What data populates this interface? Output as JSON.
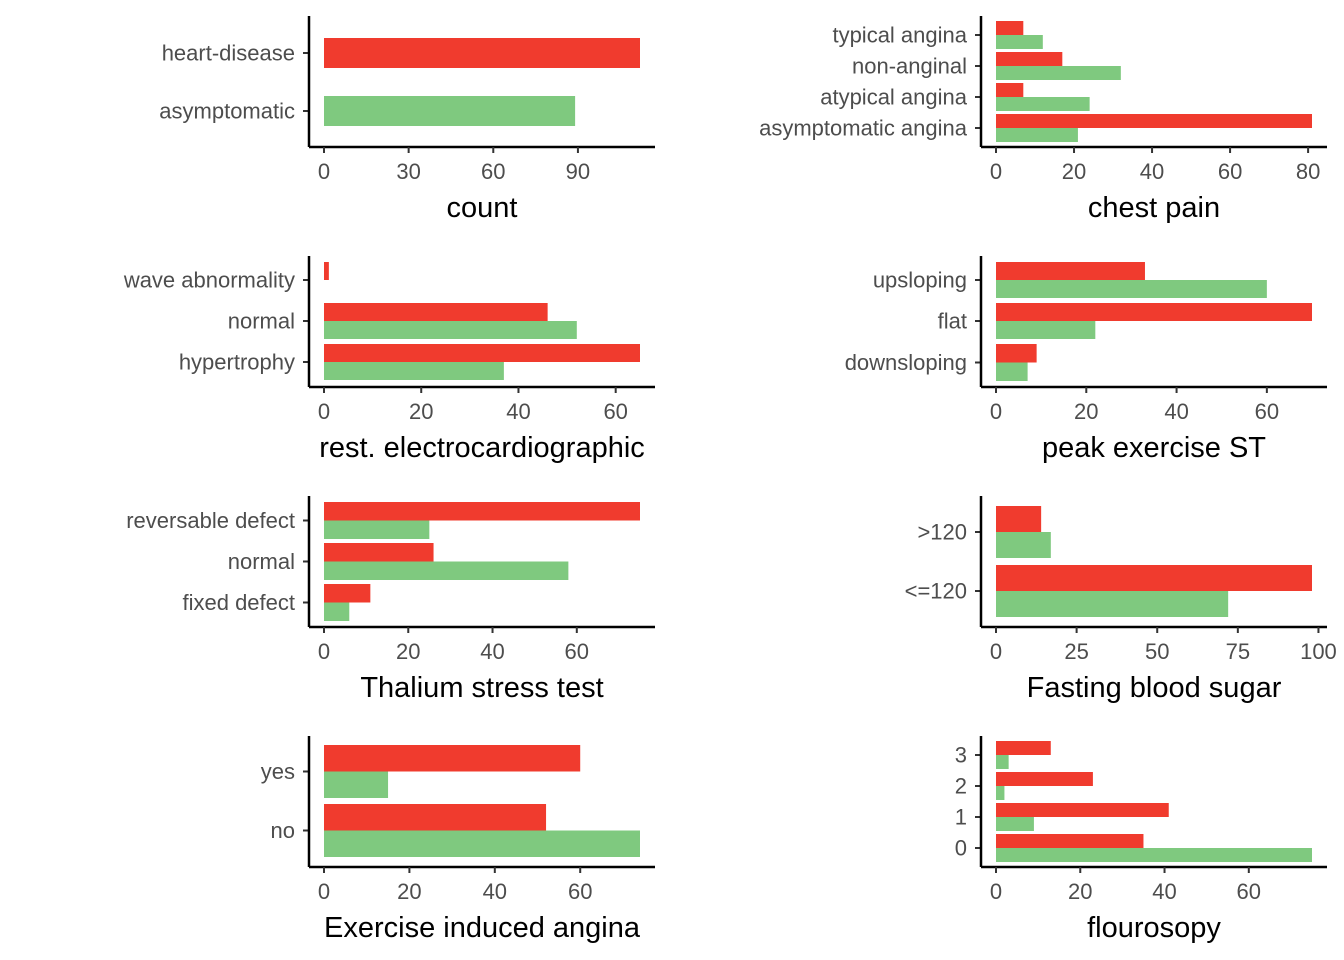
{
  "colors": {
    "heart_disease": "#f03b2e",
    "asymptomatic": "#7fc97f"
  },
  "chart_data": [
    {
      "id": "count",
      "type": "bar",
      "orientation": "horizontal",
      "xlabel": "count",
      "xlim": [
        0,
        112
      ],
      "xticks": [
        0,
        30,
        60,
        90
      ],
      "categories": [
        "heart-disease",
        "asymptomatic"
      ],
      "series": [
        {
          "values": [
            112,
            89
          ]
        }
      ],
      "bar_colors": [
        "#f03b2e",
        "#7fc97f"
      ]
    },
    {
      "id": "chest-pain",
      "type": "bar",
      "orientation": "horizontal",
      "xlabel": "chest pain",
      "xlim": [
        0,
        81
      ],
      "xticks": [
        0,
        20,
        40,
        60,
        80
      ],
      "categories": [
        "typical angina",
        "non-anginal",
        "atypical angina",
        "asymptomatic angina"
      ],
      "series": [
        {
          "color": "#f03b2e",
          "values": [
            7,
            17,
            7,
            81
          ]
        },
        {
          "color": "#7fc97f",
          "values": [
            12,
            32,
            24,
            21
          ]
        }
      ]
    },
    {
      "id": "rest-ecg",
      "type": "bar",
      "orientation": "horizontal",
      "xlabel": "rest. electrocardiographic",
      "xlim": [
        0,
        65
      ],
      "xticks": [
        0,
        20,
        40,
        60
      ],
      "categories": [
        "wave abnormality",
        "normal",
        "hypertrophy"
      ],
      "series": [
        {
          "color": "#f03b2e",
          "values": [
            1,
            46,
            65
          ]
        },
        {
          "color": "#7fc97f",
          "values": [
            0,
            52,
            37
          ]
        }
      ]
    },
    {
      "id": "peak-exercise-st",
      "type": "bar",
      "orientation": "horizontal",
      "xlabel": "peak exercise ST",
      "xlim": [
        0,
        70
      ],
      "xticks": [
        0,
        20,
        40,
        60
      ],
      "categories": [
        "upsloping",
        "flat",
        "downsloping"
      ],
      "series": [
        {
          "color": "#f03b2e",
          "values": [
            33,
            70,
            9
          ]
        },
        {
          "color": "#7fc97f",
          "values": [
            60,
            22,
            7
          ]
        }
      ]
    },
    {
      "id": "thalium",
      "type": "bar",
      "orientation": "horizontal",
      "xlabel": "Thalium stress test",
      "xlim": [
        0,
        75
      ],
      "xticks": [
        0,
        20,
        40,
        60
      ],
      "categories": [
        "reversable defect",
        "normal",
        "fixed defect"
      ],
      "series": [
        {
          "color": "#f03b2e",
          "values": [
            75,
            26,
            11
          ]
        },
        {
          "color": "#7fc97f",
          "values": [
            25,
            58,
            6
          ]
        }
      ]
    },
    {
      "id": "fasting-blood-sugar",
      "type": "bar",
      "orientation": "horizontal",
      "xlabel": "Fasting blood sugar",
      "xlim": [
        0,
        98
      ],
      "xticks": [
        0,
        25,
        50,
        75,
        100
      ],
      "categories": [
        ">120",
        "<=120"
      ],
      "series": [
        {
          "color": "#f03b2e",
          "values": [
            14,
            98
          ]
        },
        {
          "color": "#7fc97f",
          "values": [
            17,
            72
          ]
        }
      ]
    },
    {
      "id": "exercise-angina",
      "type": "bar",
      "orientation": "horizontal",
      "xlabel": "Exercise induced angina",
      "xlim": [
        0,
        74
      ],
      "xticks": [
        0,
        20,
        40,
        60
      ],
      "categories": [
        "yes",
        "no"
      ],
      "series": [
        {
          "color": "#f03b2e",
          "values": [
            60,
            52
          ]
        },
        {
          "color": "#7fc97f",
          "values": [
            15,
            74
          ]
        }
      ]
    },
    {
      "id": "flourosopy",
      "type": "bar",
      "orientation": "horizontal",
      "xlabel": "flourosopy",
      "xlim": [
        0,
        75
      ],
      "xticks": [
        0,
        20,
        40,
        60
      ],
      "categories": [
        "3",
        "2",
        "1",
        "0"
      ],
      "series": [
        {
          "color": "#f03b2e",
          "values": [
            13,
            23,
            41,
            35
          ]
        },
        {
          "color": "#7fc97f",
          "values": [
            3,
            2,
            9,
            75
          ]
        }
      ]
    }
  ]
}
